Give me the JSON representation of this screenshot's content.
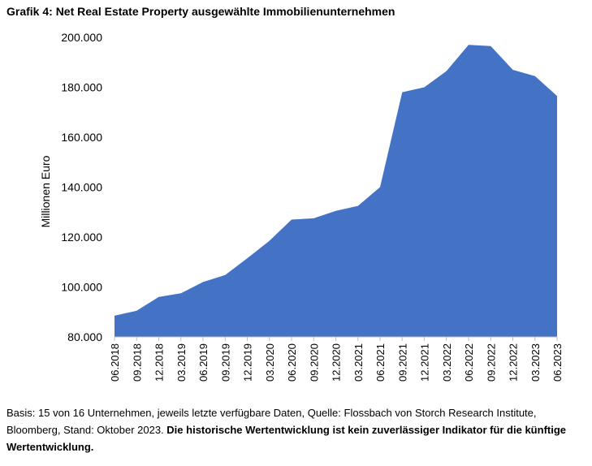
{
  "title": "Grafik 4: Net Real Estate Property ausgewählte Immobilienunternehmen",
  "footnote": {
    "normal": "Basis: 15 von 16 Unternehmen, jeweils letzte verfügbare Daten, Quelle: Flossbach von Storch Research Institute, Bloomberg, Stand: Oktober 2023. ",
    "bold": "Die historische Wertentwicklung ist kein zuverlässiger Indikator für die künftige Wertentwicklung."
  },
  "colors": {
    "area": "#4472c4"
  },
  "chart_data": {
    "type": "area",
    "ylabel": "Millionen Euro",
    "xlabel": "",
    "ylim": [
      80000,
      200000
    ],
    "yticks": [
      80000,
      100000,
      120000,
      140000,
      160000,
      180000,
      200000
    ],
    "ytick_labels": [
      "80.000",
      "100.000",
      "120.000",
      "140.000",
      "160.000",
      "180.000",
      "200.000"
    ],
    "categories": [
      "06.2018",
      "09.2018",
      "12.2018",
      "03.2019",
      "06.2019",
      "09.2019",
      "12.2019",
      "03.2020",
      "06.2020",
      "09.2020",
      "12.2020",
      "03.2021",
      "06.2021",
      "09.2021",
      "12.2021",
      "03.2022",
      "06.2022",
      "09.2022",
      "12.2022",
      "03.2023",
      "06.2023"
    ],
    "values": [
      88500,
      90500,
      96000,
      97500,
      102000,
      104800,
      111500,
      118500,
      127000,
      127500,
      130500,
      132500,
      140000,
      178000,
      180000,
      186500,
      197000,
      196500,
      187000,
      184500,
      176500
    ],
    "grid": false,
    "legend": "none"
  }
}
